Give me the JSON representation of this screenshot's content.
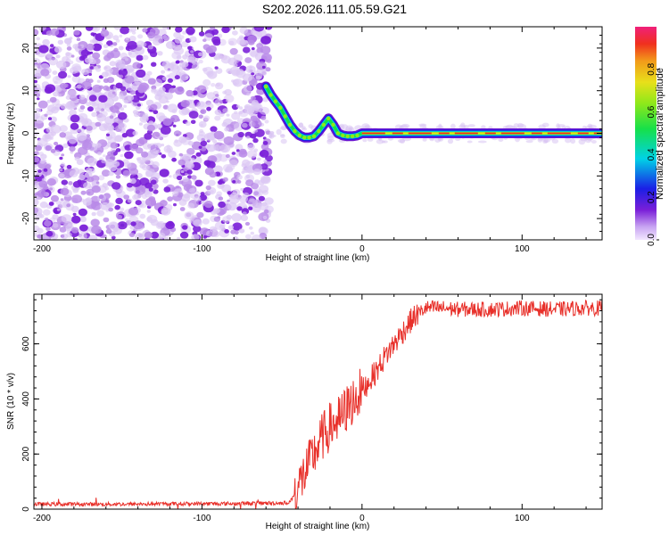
{
  "title": "S202.2026.111.05.59.G21",
  "colors": {
    "signal": "#e8302a",
    "scatter": "#8a2be2",
    "axis": "#000000"
  },
  "chart_data": [
    {
      "type": "heatmap",
      "title": "S202.2026.111.05.59.G21",
      "xlabel": "Height of straight line (km)",
      "ylabel": "Frequency (Hz)",
      "xlim": [
        -205,
        150
      ],
      "ylim": [
        -25,
        25
      ],
      "xticks": [
        -200,
        -100,
        0,
        100
      ],
      "yticks": [
        -20,
        -10,
        0,
        10,
        20
      ],
      "noise_region_x": [
        -205,
        -58
      ],
      "ridge": {
        "x": [
          -60,
          -57,
          -54,
          -51,
          -48,
          -45,
          -42,
          -39,
          -36,
          -33,
          -30,
          -27,
          -24,
          -21,
          -18,
          -15,
          -12,
          -9,
          -6,
          -3,
          0,
          10,
          20,
          30,
          40,
          50,
          60,
          70,
          80,
          90,
          100,
          110,
          120,
          130,
          140,
          150
        ],
        "freq": [
          11,
          9,
          7.5,
          6,
          4,
          2,
          0.5,
          -0.5,
          -1,
          -1,
          -0.7,
          0.5,
          2,
          3.5,
          2,
          0,
          -0.5,
          -0.7,
          -0.7,
          -0.5,
          0,
          0,
          0,
          0,
          0,
          0,
          0,
          0,
          0,
          0,
          0,
          0,
          0,
          0,
          0,
          0
        ]
      },
      "colorbar": {
        "label": "Normalized spectral amplitude",
        "ticks": [
          0.0,
          0.2,
          0.4,
          0.6,
          0.8
        ],
        "tick_labels": [
          "0.0",
          "0.2",
          "0.4",
          "0.6",
          "0.8"
        ],
        "range": [
          0,
          1
        ]
      }
    },
    {
      "type": "line",
      "xlabel": "Height of straight line (km)",
      "ylabel": "SNR (10 * v/v)",
      "xlim": [
        -205,
        150
      ],
      "ylim": [
        0,
        780
      ],
      "xticks": [
        -200,
        -100,
        0,
        100
      ],
      "yticks": [
        0,
        200,
        400,
        600
      ],
      "series": [
        {
          "name": "SNR",
          "x": [
            -205,
            -150,
            -100,
            -80,
            -62,
            -50,
            -45,
            -40,
            -35,
            -30,
            -25,
            -20,
            -15,
            -10,
            -5,
            0,
            5,
            10,
            15,
            20,
            25,
            30,
            35,
            40,
            50,
            60,
            80,
            100,
            120,
            140,
            150
          ],
          "values": [
            18,
            18,
            20,
            20,
            22,
            22,
            25,
            80,
            140,
            200,
            260,
            300,
            320,
            360,
            400,
            430,
            470,
            510,
            560,
            600,
            640,
            680,
            710,
            730,
            730,
            725,
            725,
            730,
            725,
            730,
            730
          ]
        }
      ]
    }
  ]
}
